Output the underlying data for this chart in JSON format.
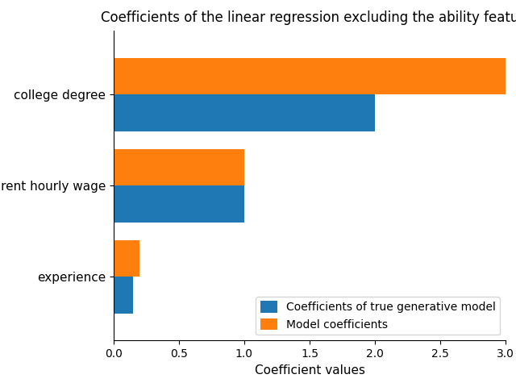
{
  "title": "Coefficients of the linear regression excluding the ability featu",
  "categories": [
    "experience",
    "parent hourly wage",
    "college degree"
  ],
  "true_model_coefficients": [
    0.15,
    1.0,
    2.0
  ],
  "model_coefficients": [
    0.2,
    1.0,
    3.0
  ],
  "xlabel": "Coefficient values",
  "xlim": [
    0,
    3.0
  ],
  "bar_height": 0.4,
  "color_true": "#1f77b4",
  "color_model": "#ff7f0e",
  "legend_true": "Coefficients of true generative model",
  "legend_model": "Model coefficients",
  "background_color": "#ffffff",
  "figsize": [
    6.4,
    4.8
  ],
  "dpi": 100
}
